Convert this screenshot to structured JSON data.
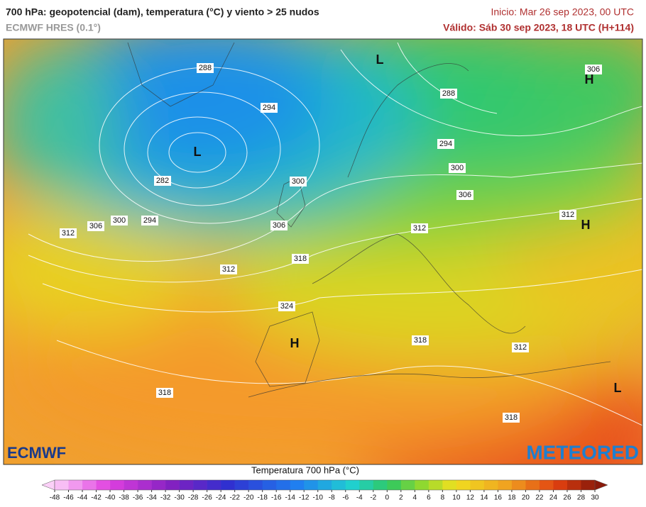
{
  "header": {
    "title": "700 hPa: geopotencial (dam), temperatura (°C) y viento > 25 nudos",
    "model": "ECMWF HRES (0.1°)",
    "init": "Inicio: Mar 26 sep 2023, 00 UTC",
    "valid": "Válido: Sáb 30 sep 2023, 18 UTC (H+114)"
  },
  "map": {
    "contour_labels": [
      288,
      294,
      282,
      300,
      294,
      306,
      312,
      300,
      306,
      312,
      318,
      324,
      318,
      312,
      318,
      318,
      288,
      294,
      300,
      306,
      312,
      312,
      306
    ],
    "pressure_centers": [
      "L",
      "L",
      "H",
      "H",
      "H",
      "L"
    ]
  },
  "logos": {
    "left": "ECMWF",
    "right": "METEORED"
  },
  "colorbar": {
    "label": "Temperatura 700 hPa (°C)",
    "ticks": [
      -48,
      -46,
      -44,
      -42,
      -40,
      -38,
      -36,
      -34,
      -32,
      -30,
      -28,
      -26,
      -24,
      -22,
      -20,
      -18,
      -16,
      -14,
      -12,
      -10,
      -8,
      -6,
      -4,
      -2,
      0,
      2,
      4,
      6,
      8,
      10,
      12,
      14,
      16,
      18,
      20,
      22,
      24,
      26,
      28,
      30
    ]
  }
}
